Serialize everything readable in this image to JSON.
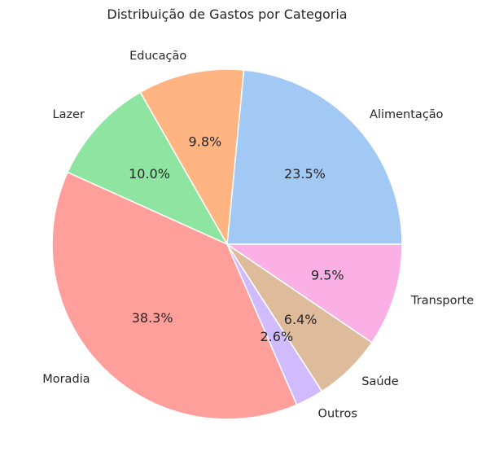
{
  "chart_data": {
    "type": "pie",
    "title": "Distribuição de Gastos por Categoria",
    "start_angle_deg": 0,
    "direction": "counterclockwise",
    "slices": [
      {
        "label": "Alimentação",
        "value": 23.5,
        "pct_label": "23.5%",
        "color": "#a1c9f4"
      },
      {
        "label": "Educação",
        "value": 9.8,
        "pct_label": "9.8%",
        "color": "#ffb482"
      },
      {
        "label": "Lazer",
        "value": 10.0,
        "pct_label": "10.0%",
        "color": "#8de5a1"
      },
      {
        "label": "Moradia",
        "value": 38.3,
        "pct_label": "38.3%",
        "color": "#ff9f9b"
      },
      {
        "label": "Outros",
        "value": 2.6,
        "pct_label": "2.6%",
        "color": "#d0bbff"
      },
      {
        "label": "Saúde",
        "value": 6.4,
        "pct_label": "6.4%",
        "color": "#debb9b"
      },
      {
        "label": "Transporte",
        "value": 9.5,
        "pct_label": "9.5%",
        "color": "#fab0e4"
      }
    ]
  }
}
